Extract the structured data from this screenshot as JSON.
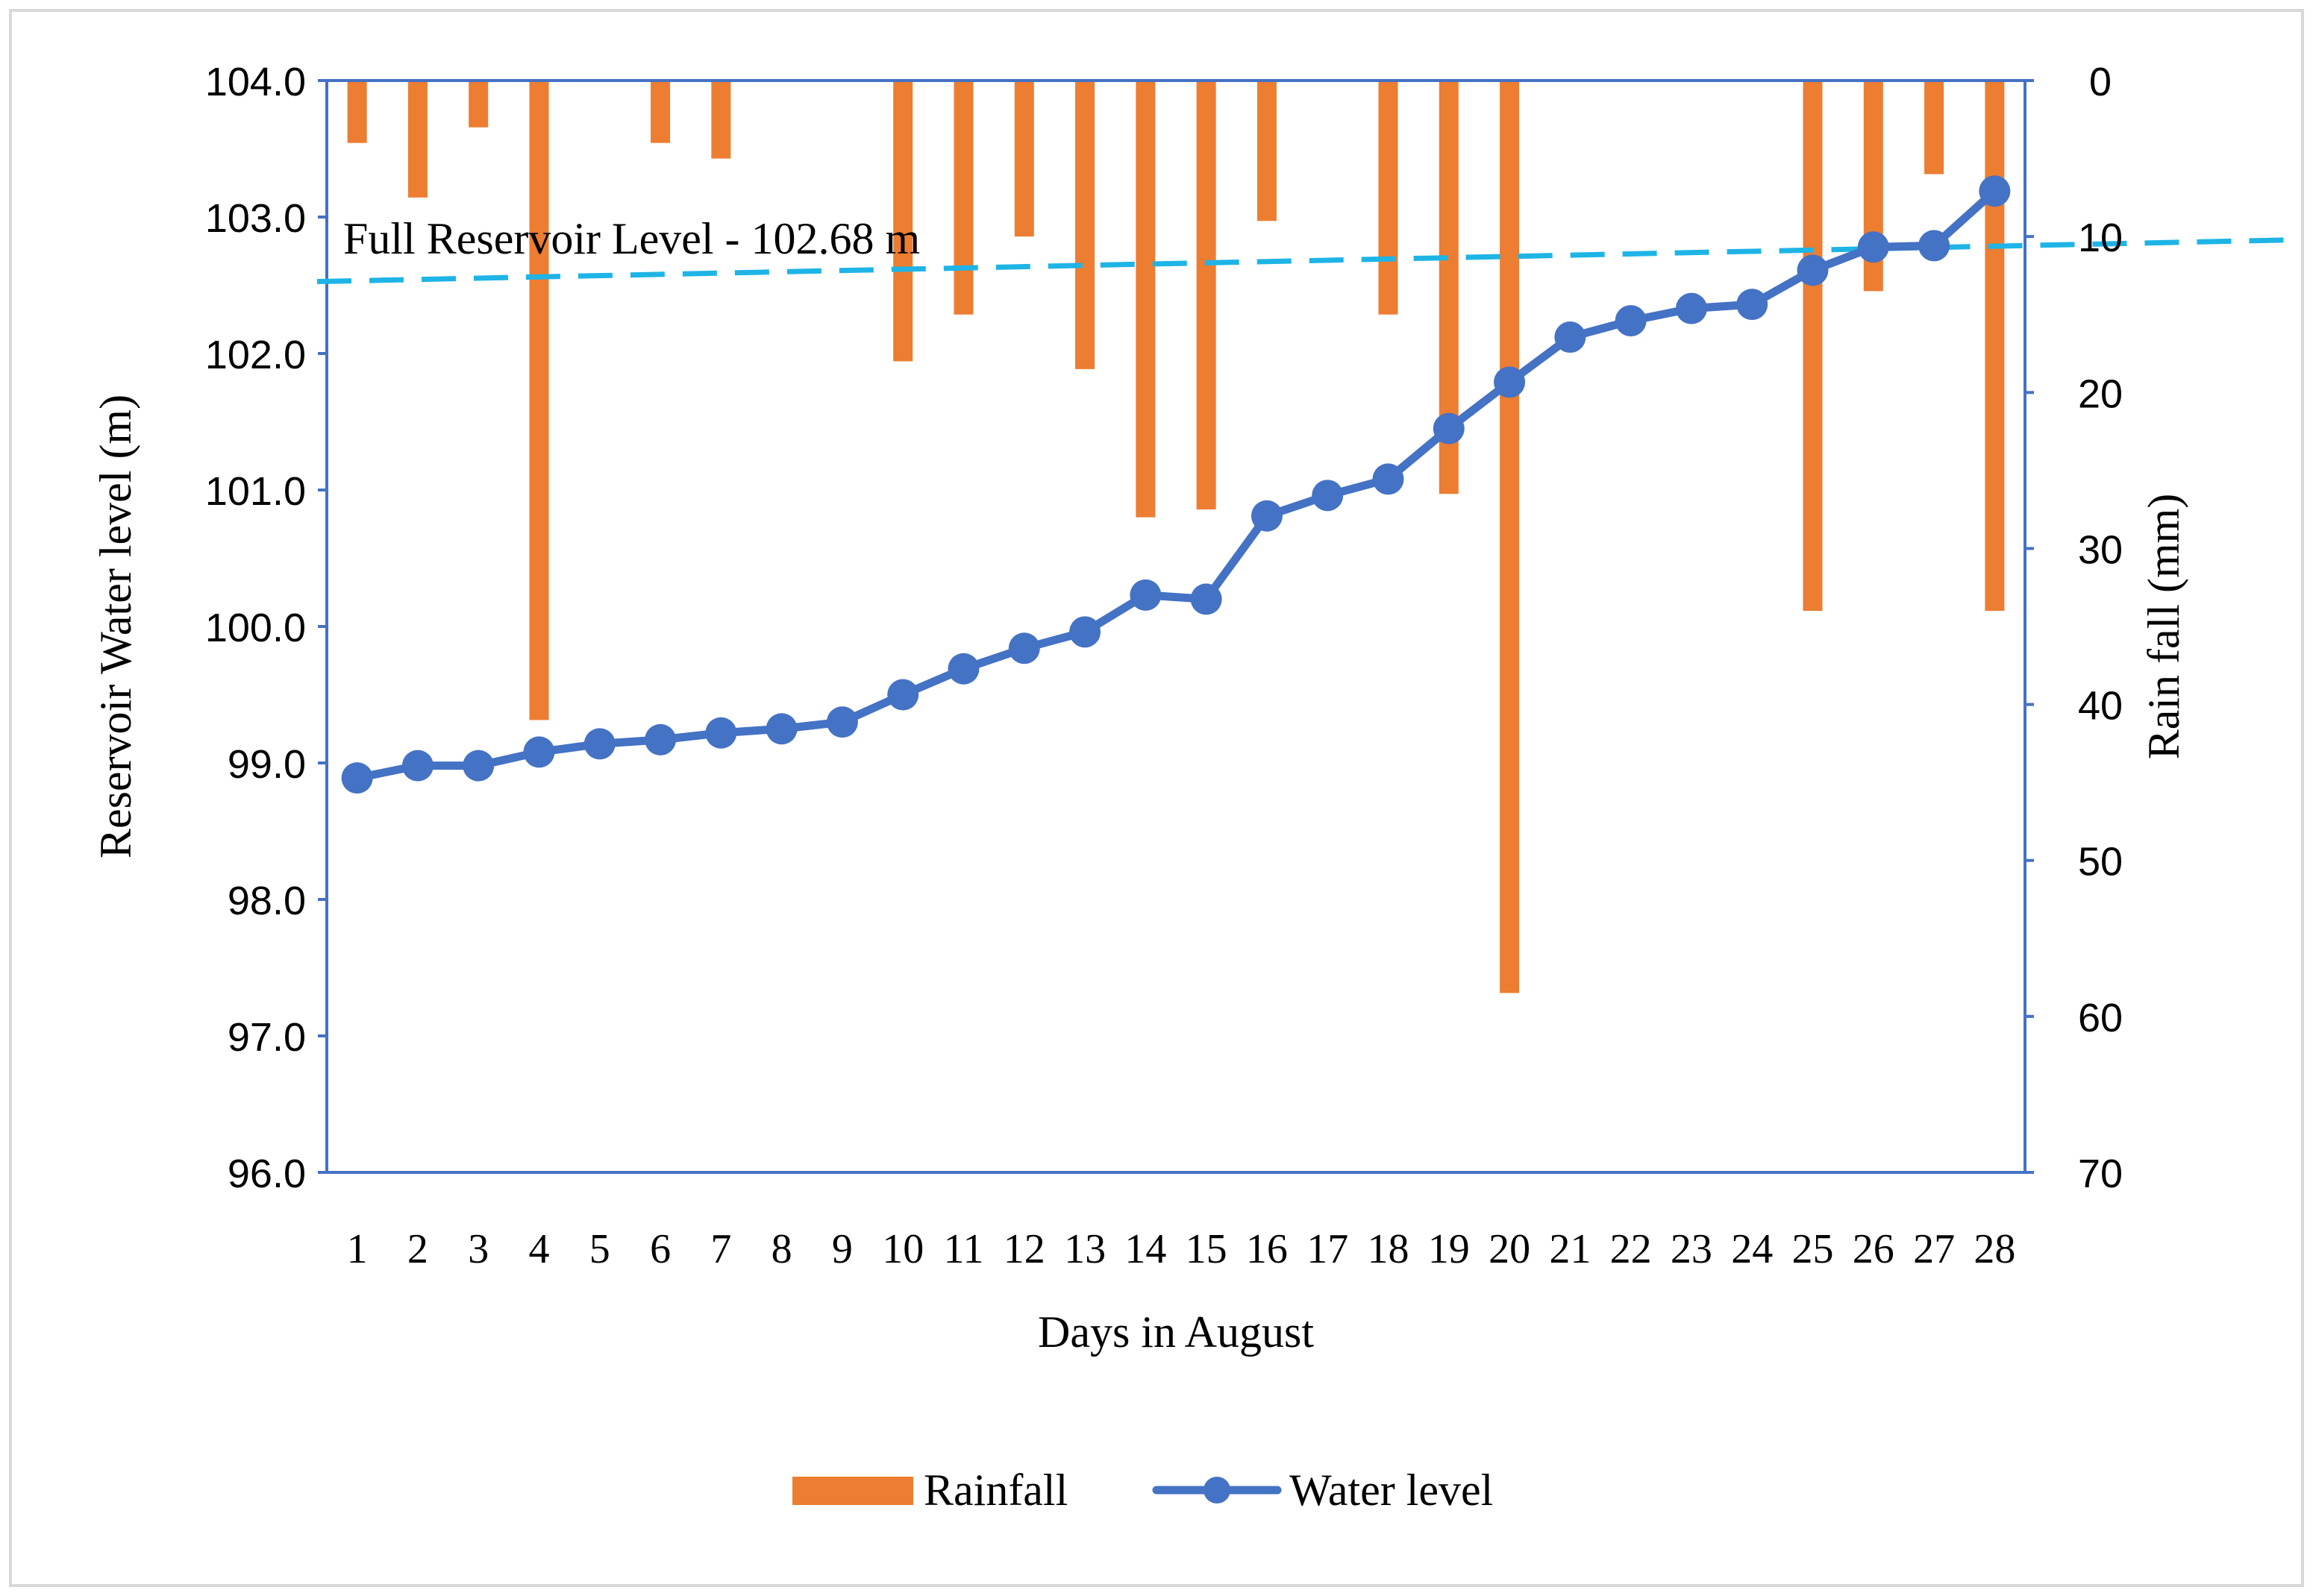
{
  "chart_data": {
    "type": "bar+line",
    "title": "",
    "xlabel": "Days in August",
    "ylabel_left": "Reservoir Water level (m)",
    "ylabel_right": "Rain fall (mm)",
    "categories": [
      "1",
      "2",
      "3",
      "4",
      "5",
      "6",
      "7",
      "8",
      "9",
      "10",
      "11",
      "12",
      "13",
      "14",
      "15",
      "16",
      "17",
      "18",
      "19",
      "20",
      "21",
      "22",
      "23",
      "24",
      "25",
      "26",
      "27",
      "28"
    ],
    "left_axis": {
      "ylim": [
        96.0,
        104.0
      ],
      "ticks": [
        "96.0",
        "97.0",
        "98.0",
        "99.0",
        "100.0",
        "101.0",
        "102.0",
        "103.0",
        "104.0"
      ],
      "tick_values": [
        96,
        97,
        98,
        99,
        100,
        101,
        102,
        103,
        104
      ]
    },
    "right_axis": {
      "ylim": [
        0,
        70
      ],
      "inverted": true,
      "ticks": [
        "0",
        "10",
        "20",
        "30",
        "40",
        "50",
        "60",
        "70"
      ],
      "tick_values": [
        0,
        10,
        20,
        30,
        40,
        50,
        60,
        70
      ]
    },
    "series": [
      {
        "name": "Rainfall",
        "type": "bar",
        "axis": "right",
        "color": "#ED7D31",
        "values": [
          4,
          7.5,
          3,
          41,
          0,
          4,
          5,
          0,
          0,
          18,
          15,
          10,
          18.5,
          28,
          27.5,
          9,
          0,
          15,
          26.5,
          58.5,
          0,
          0,
          0,
          0,
          34,
          13.5,
          6,
          34
        ]
      },
      {
        "name": "Water level",
        "type": "line",
        "axis": "left",
        "color": "#4472C4",
        "values": [
          98.89,
          98.98,
          98.98,
          99.08,
          99.14,
          99.17,
          99.22,
          99.25,
          99.3,
          99.5,
          99.69,
          99.84,
          99.96,
          100.23,
          100.2,
          100.81,
          100.96,
          101.08,
          101.45,
          101.79,
          102.12,
          102.24,
          102.33,
          102.36,
          102.61,
          102.78,
          102.79,
          103.19
        ]
      }
    ],
    "reference_line": {
      "label": "Full Reservoir Level - 102.68 m",
      "value": 102.68,
      "color": "#1EB4E6",
      "style": "dashed"
    },
    "legend": {
      "position": "bottom",
      "entries": [
        "Rainfall",
        "Water level"
      ]
    },
    "colors": {
      "axis": "#4472C4",
      "frame": "#D9D9D9",
      "text": "#000000"
    }
  }
}
